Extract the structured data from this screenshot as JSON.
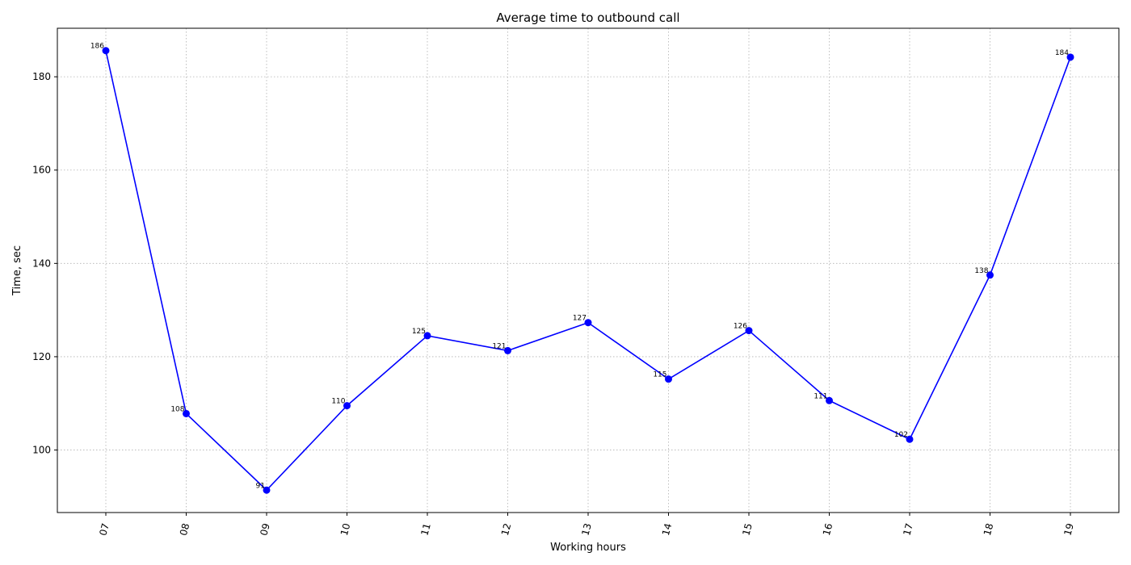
{
  "chart_data": {
    "type": "line",
    "title": "Average time to outbound call",
    "xlabel": "Working hours",
    "ylabel": "Time, sec",
    "categories": [
      "07",
      "08",
      "09",
      "10",
      "11",
      "12",
      "13",
      "14",
      "15",
      "16",
      "17",
      "18",
      "19"
    ],
    "values": [
      185.6,
      107.8,
      91.4,
      109.5,
      124.5,
      121.3,
      127.3,
      115.2,
      125.6,
      110.6,
      102.3,
      137.5,
      184.2
    ],
    "data_labels": [
      "186",
      "108",
      "91",
      "110",
      "125",
      "121",
      "127",
      "115",
      "126",
      "111",
      "102",
      "138",
      "184"
    ],
    "ylim": [
      86.6,
      190.4
    ],
    "yticks": [
      100,
      120,
      140,
      160,
      180
    ],
    "grid": true,
    "x_tick_rotation": "rotated",
    "series_color": "#0000ff",
    "marker": "circle"
  }
}
